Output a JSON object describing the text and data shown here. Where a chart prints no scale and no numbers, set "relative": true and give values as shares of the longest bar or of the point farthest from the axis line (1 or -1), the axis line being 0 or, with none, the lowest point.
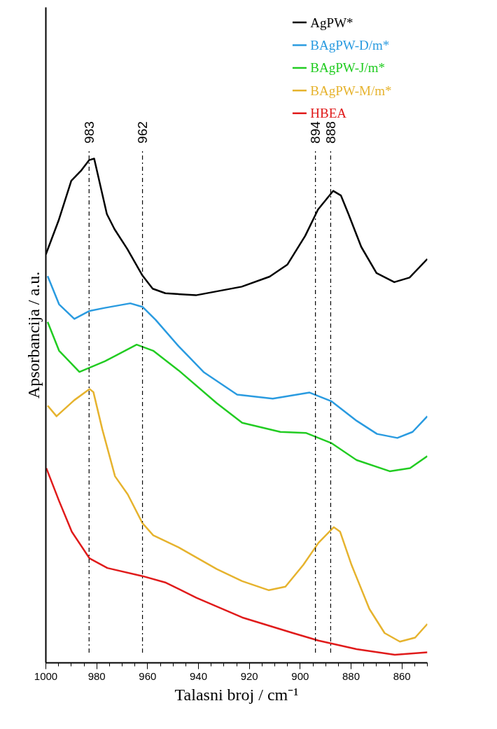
{
  "chart_data": {
    "type": "line",
    "relative": true,
    "xlabel": "Talasni broj / cm⁻¹",
    "ylabel": "Apsorbancija / a.u.",
    "xlim": [
      1000,
      850
    ],
    "xticks": [
      1000,
      {
        "value": 995,
        "label": null
      },
      {
        "value": 990,
        "label": null
      },
      {
        "value": 985,
        "label": null
      },
      980,
      {
        "value": 975,
        "label": null
      },
      {
        "value": 970,
        "label": null
      },
      {
        "value": 965,
        "label": null
      },
      960,
      {
        "value": 955,
        "label": null
      },
      {
        "value": 950,
        "label": null
      },
      {
        "value": 945,
        "label": null
      },
      940,
      {
        "value": 935,
        "label": null
      },
      {
        "value": 930,
        "label": null
      },
      {
        "value": 925,
        "label": null
      },
      920,
      {
        "value": 915,
        "label": null
      },
      {
        "value": 910,
        "label": null
      },
      {
        "value": 905,
        "label": null
      },
      900,
      {
        "value": 895,
        "label": null
      },
      {
        "value": 890,
        "label": null
      },
      {
        "value": 885,
        "label": null
      },
      880,
      {
        "value": 875,
        "label": null
      },
      {
        "value": 870,
        "label": null
      },
      {
        "value": 865,
        "label": null
      },
      860,
      {
        "value": 855,
        "label": null
      },
      {
        "value": 850,
        "label": null
      }
    ],
    "tick_labels": "x",
    "grid": false,
    "legend": "top right",
    "marker": "none",
    "line_style": "solid",
    "series": [
      {
        "name": "AgPW*",
        "color": "#000000",
        "x": [
          1000,
          995,
          990,
          986,
          983,
          981,
          979,
          976,
          973,
          968,
          962,
          958,
          953,
          941,
          923,
          912,
          905,
          898,
          893,
          887,
          884,
          881,
          876,
          870,
          863,
          857,
          850
        ],
        "values": [
          0.81,
          0.877,
          0.956,
          0.977,
          0.997,
          1.0,
          0.956,
          0.89,
          0.86,
          0.821,
          0.768,
          0.742,
          0.733,
          0.729,
          0.746,
          0.766,
          0.79,
          0.847,
          0.899,
          0.936,
          0.927,
          0.89,
          0.825,
          0.773,
          0.755,
          0.764,
          0.801
        ]
      },
      {
        "name": "BAgPW-D/m*",
        "color": "#2a9be0",
        "x": [
          999.3,
          994.8,
          988.8,
          982.8,
          976.8,
          966.8,
          962,
          956.8,
          947.8,
          937.8,
          924.8,
          910.8,
          896.3,
          887.8,
          877.8,
          869.8,
          861.8,
          855.8,
          850
        ],
        "values": [
          0.767,
          0.711,
          0.682,
          0.698,
          0.704,
          0.713,
          0.706,
          0.68,
          0.628,
          0.576,
          0.532,
          0.524,
          0.536,
          0.519,
          0.48,
          0.454,
          0.446,
          0.458,
          0.489
        ]
      },
      {
        "name": "BAgPW-J/m*",
        "color": "#22cc22",
        "x": [
          999.3,
          994.8,
          986.8,
          976.8,
          964.3,
          957.8,
          947.8,
          932.8,
          922.8,
          907.8,
          897.8,
          887.8,
          877.8,
          864.8,
          856.8,
          850
        ],
        "values": [
          0.676,
          0.619,
          0.577,
          0.598,
          0.631,
          0.619,
          0.58,
          0.515,
          0.476,
          0.458,
          0.456,
          0.436,
          0.402,
          0.38,
          0.386,
          0.41
        ]
      },
      {
        "name": "BAgPW-M/m*",
        "color": "#e6b32e",
        "x": [
          999.3,
          995.8,
          988.8,
          982.8,
          981.3,
          977.8,
          972.8,
          967.8,
          962,
          957.8,
          947.8,
          932.8,
          922.8,
          912.3,
          905.8,
          898.8,
          892.8,
          886.8,
          884.3,
          879.8,
          872.8,
          866.8,
          860.8,
          854.8,
          850
        ],
        "values": [
          0.51,
          0.489,
          0.521,
          0.543,
          0.537,
          0.463,
          0.37,
          0.334,
          0.277,
          0.253,
          0.229,
          0.186,
          0.162,
          0.144,
          0.151,
          0.194,
          0.238,
          0.269,
          0.26,
          0.194,
          0.107,
          0.059,
          0.042,
          0.05,
          0.077
        ]
      },
      {
        "name": "HBEA",
        "color": "#e01b1b",
        "x": [
          999.8,
          994.8,
          989.8,
          982.8,
          975.8,
          962,
          952.8,
          940.8,
          922.8,
          902.8,
          892.8,
          877.8,
          862.8,
          850
        ],
        "values": [
          0.386,
          0.321,
          0.26,
          0.207,
          0.188,
          0.172,
          0.159,
          0.129,
          0.09,
          0.059,
          0.044,
          0.027,
          0.016,
          0.021
        ]
      }
    ],
    "ref_lines": [
      {
        "axis": "x",
        "value": 983,
        "label": "983",
        "color": "#000000",
        "line_style": "dashdot"
      },
      {
        "axis": "x",
        "value": 962,
        "label": "962",
        "color": "#000000",
        "line_style": "dashdot"
      },
      {
        "axis": "x",
        "value": 894,
        "label": "894",
        "color": "#000000",
        "line_style": "dashdot"
      },
      {
        "axis": "x",
        "value": 888,
        "label": "888",
        "color": "#000000",
        "line_style": "dashdot"
      }
    ]
  }
}
